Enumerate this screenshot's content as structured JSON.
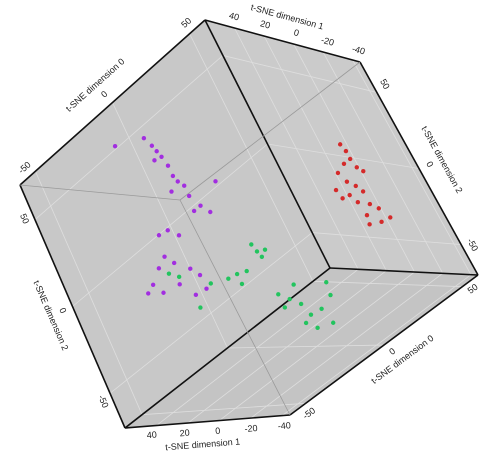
{
  "chart_data": {
    "type": "scatter3d",
    "xlabel": "t-SNE dimension 0",
    "ylabel": "t-SNE dimension 1",
    "zlabel": "t-SNE dimension 2",
    "xlim": [
      -60,
      60
    ],
    "ylim": [
      -45,
      60
    ],
    "zlim": [
      -70,
      70
    ],
    "xticks": [
      -50,
      0,
      50
    ],
    "yticks": [
      -40,
      -20,
      0,
      20,
      40
    ],
    "zticks": [
      -50,
      0,
      50
    ],
    "grid": true,
    "series": [
      {
        "color": "#d42a2a",
        "x": [
          45,
          46,
          46,
          42,
          47,
          37,
          49,
          39,
          42,
          32,
          37,
          44,
          33,
          39,
          44,
          47,
          40,
          45,
          50,
          39
        ],
        "y": [
          -20,
          -20,
          -20,
          -20,
          -20,
          -20,
          -20,
          -20,
          -20,
          -20,
          -20,
          -20,
          -20,
          -20,
          -20,
          -20,
          -20,
          -20,
          -20,
          -20
        ],
        "z": [
          23,
          18,
          13,
          13,
          7,
          11,
          3,
          4,
          -1,
          4,
          -3,
          -6,
          -2,
          -9,
          -14,
          -19,
          -18,
          -26,
          -27,
          -23
        ]
      },
      {
        "color": "#22c45e",
        "x": [
          0,
          1,
          2,
          5,
          -8,
          -13,
          -18,
          -13,
          -27,
          -37,
          -40,
          -44,
          1,
          5,
          1,
          9,
          11,
          17,
          7,
          11,
          19,
          24,
          25,
          10
        ],
        "y": [
          10,
          10,
          10,
          10,
          10,
          10,
          10,
          10,
          10,
          10,
          10,
          10,
          10,
          10,
          10,
          10,
          10,
          10,
          10,
          10,
          10,
          10,
          10,
          10
        ],
        "z": [
          -8,
          -13,
          -17,
          -15,
          -18,
          -16,
          -15,
          -22,
          -11,
          -18,
          3,
          8,
          -39,
          -45,
          -47,
          -51,
          -59,
          -60,
          -61,
          -67,
          -70,
          -57,
          -50,
          -40
        ]
      },
      {
        "color": "#a22ee0",
        "x": [
          -21,
          -6,
          -4,
          -3,
          -2,
          -6,
          -1,
          -1,
          0,
          2,
          -5,
          2,
          5,
          8,
          1,
          17,
          -15,
          -20,
          -11,
          -22,
          -19,
          -27,
          -13,
          -10,
          -30,
          -37,
          -21,
          -16,
          -33,
          -10
        ],
        "y": [
          40,
          40,
          40,
          40,
          40,
          40,
          40,
          40,
          40,
          40,
          40,
          40,
          40,
          40,
          40,
          40,
          40,
          40,
          40,
          40,
          40,
          40,
          40,
          40,
          40,
          40,
          40,
          40,
          40,
          40
        ],
        "z": [
          64,
          57,
          51,
          47,
          43,
          44,
          37,
          31,
          27,
          23,
          25,
          17,
          9,
          3,
          9,
          14,
          10,
          11,
          4,
          0,
          -6,
          -3,
          -14,
          -20,
          -15,
          -10,
          -17,
          -27,
          -8,
          -28
        ]
      }
    ]
  }
}
